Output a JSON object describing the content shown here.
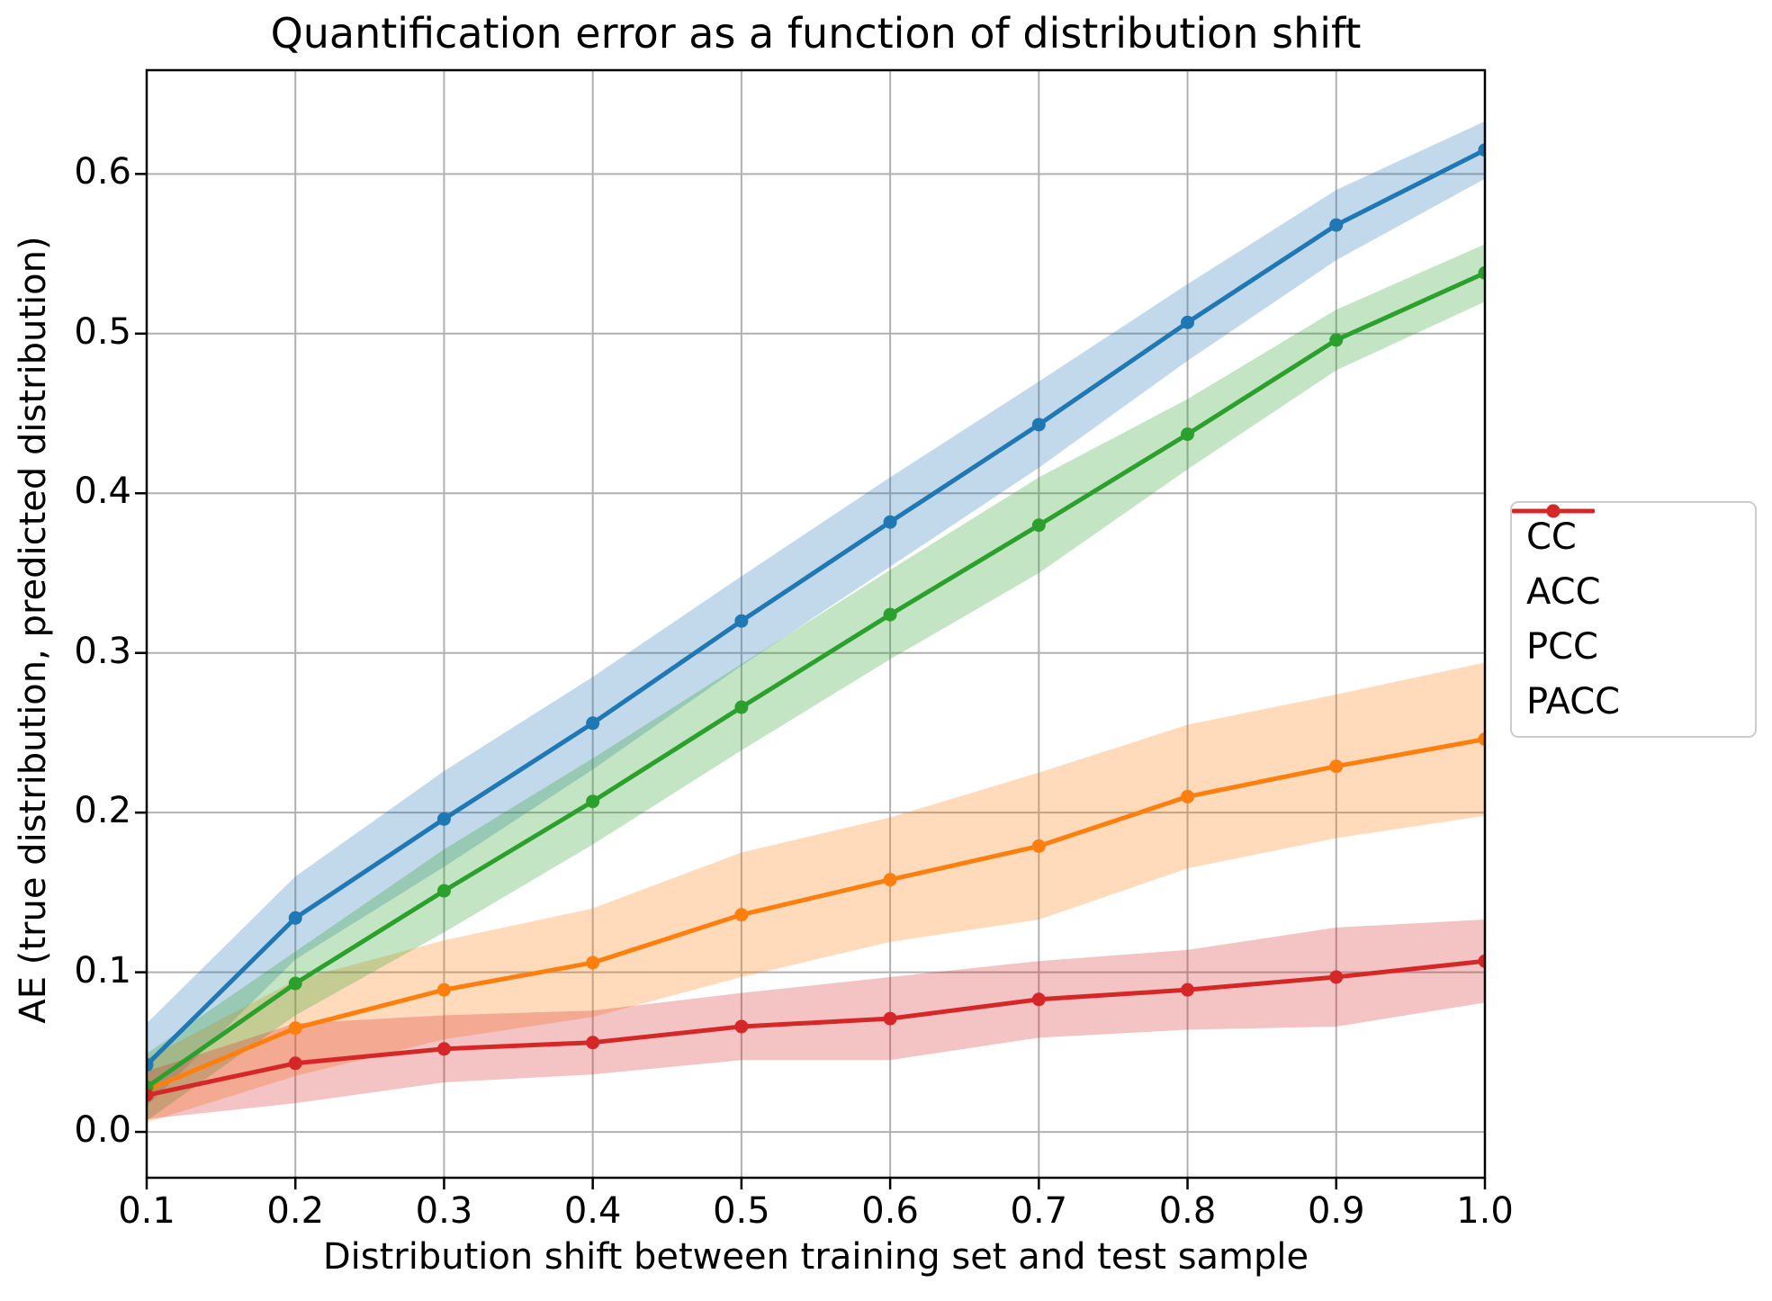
{
  "title": "Quantification error as a function of distribution shift",
  "chart_data": {
    "type": "line",
    "title": "Quantification error as a function of distribution shift",
    "xlabel": "Distribution shift between training set and test sample",
    "ylabel": "AE (true distribution, predicted distribution)",
    "x": [
      0.1,
      0.2,
      0.3,
      0.4,
      0.5,
      0.6,
      0.7,
      0.8,
      0.9,
      1.0
    ],
    "x_tick_labels": [
      "0.1",
      "0.2",
      "0.3",
      "0.4",
      "0.5",
      "0.6",
      "0.7",
      "0.8",
      "0.9",
      "1.0"
    ],
    "y_tick_labels": [
      "0.0",
      "0.1",
      "0.2",
      "0.3",
      "0.4",
      "0.5",
      "0.6"
    ],
    "y_ticks": [
      0.0,
      0.1,
      0.2,
      0.3,
      0.4,
      0.5,
      0.6
    ],
    "xlim": [
      0.1,
      1.0
    ],
    "ylim": [
      -0.0287,
      0.665
    ],
    "grid": true,
    "grid_color": "#b0b0b0",
    "spine_color": "#000000",
    "band_alpha": 0.28,
    "legend_position": "outside-right",
    "series": [
      {
        "name": "CC",
        "color": "#1f77b4",
        "values": [
          0.042,
          0.134,
          0.196,
          0.256,
          0.32,
          0.382,
          0.443,
          0.507,
          0.568,
          0.615
        ],
        "band_halfwidth": [
          0.026,
          0.026,
          0.03,
          0.029,
          0.028,
          0.028,
          0.027,
          0.024,
          0.022,
          0.018
        ]
      },
      {
        "name": "ACC",
        "color": "#ff7f0e",
        "values": [
          0.026,
          0.065,
          0.089,
          0.106,
          0.136,
          0.158,
          0.179,
          0.21,
          0.229,
          0.246
        ],
        "band_halfwidth": [
          0.02,
          0.03,
          0.031,
          0.034,
          0.039,
          0.039,
          0.046,
          0.045,
          0.045,
          0.048
        ]
      },
      {
        "name": "PCC",
        "color": "#2ca02c",
        "values": [
          0.028,
          0.093,
          0.151,
          0.207,
          0.266,
          0.324,
          0.38,
          0.437,
          0.496,
          0.538
        ],
        "band_halfwidth": [
          0.021,
          0.02,
          0.026,
          0.027,
          0.027,
          0.028,
          0.03,
          0.022,
          0.019,
          0.018
        ]
      },
      {
        "name": "PACC",
        "color": "#d62728",
        "values": [
          0.023,
          0.043,
          0.052,
          0.056,
          0.066,
          0.071,
          0.083,
          0.089,
          0.097,
          0.107
        ],
        "band_halfwidth": [
          0.015,
          0.025,
          0.021,
          0.02,
          0.021,
          0.026,
          0.024,
          0.025,
          0.031,
          0.026
        ]
      }
    ]
  }
}
